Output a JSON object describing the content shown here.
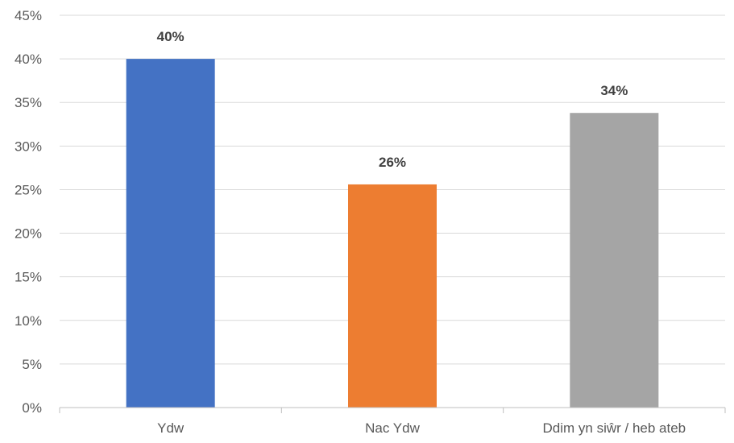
{
  "chart_data": {
    "type": "bar",
    "categories": [
      "Ydw",
      "Nac Ydw",
      "Ddim yn siŵr / heb ateb"
    ],
    "values": [
      40,
      25.6,
      33.8
    ],
    "data_labels": [
      "40%",
      "26%",
      "34%"
    ],
    "colors": [
      "#4472c4",
      "#ed7d31",
      "#a5a5a5"
    ],
    "ylim": [
      0,
      45
    ],
    "y_ticks": [
      0,
      5,
      10,
      15,
      20,
      25,
      30,
      35,
      40,
      45
    ],
    "y_tick_labels": [
      "0%",
      "5%",
      "10%",
      "15%",
      "20%",
      "25%",
      "30%",
      "35%",
      "40%",
      "45%"
    ],
    "title": "",
    "xlabel": "",
    "ylabel": "",
    "grid": true,
    "legend": "none"
  }
}
